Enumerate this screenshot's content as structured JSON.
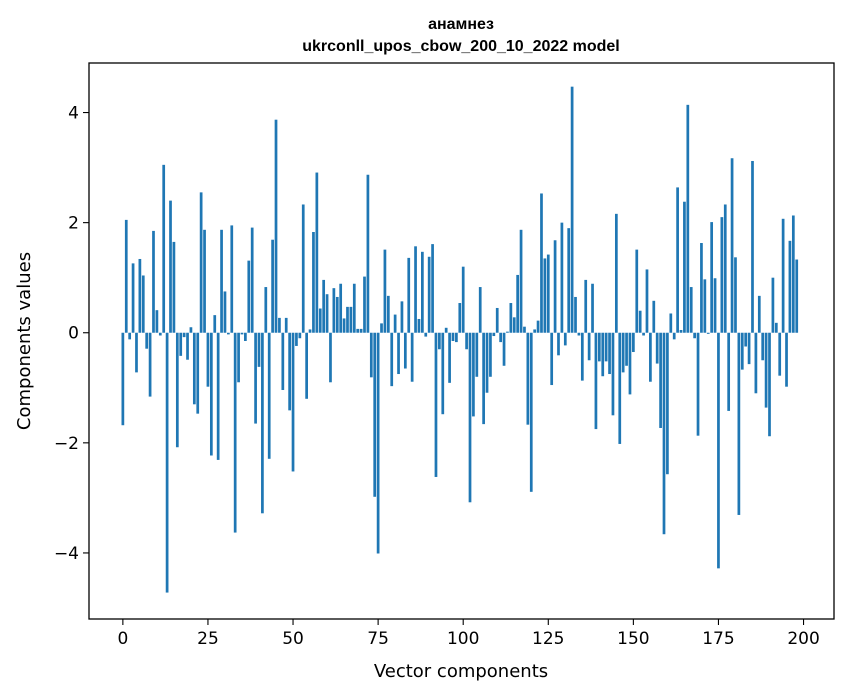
{
  "chart_data": {
    "type": "bar",
    "title_line1": "анамнез",
    "title_line2": "ukrconll_upos_cbow_200_10_2022 model",
    "xlabel": "Vector components",
    "ylabel": "Components values",
    "xlim": [
      -9.95,
      208.95
    ],
    "ylim": [
      -5.2,
      4.9
    ],
    "xticks": [
      0,
      25,
      50,
      75,
      100,
      125,
      150,
      175,
      200
    ],
    "xtick_labels": [
      "0",
      "25",
      "50",
      "75",
      "100",
      "125",
      "150",
      "175",
      "200"
    ],
    "yticks": [
      -4,
      -2,
      0,
      2,
      4
    ],
    "ytick_labels": [
      "−4",
      "−2",
      "0",
      "2",
      "4"
    ],
    "bar_color": "#1f77b4",
    "grid": false,
    "values": [
      -1.68,
      2.05,
      -0.12,
      1.26,
      -0.72,
      1.34,
      1.04,
      -0.29,
      -1.16,
      1.85,
      0.41,
      -0.05,
      3.05,
      -4.72,
      2.4,
      1.65,
      -2.08,
      -0.42,
      -0.08,
      -0.49,
      0.1,
      -1.3,
      -1.47,
      2.55,
      1.87,
      -0.98,
      -2.23,
      0.32,
      -2.31,
      1.87,
      0.75,
      -0.03,
      1.95,
      -3.63,
      -0.9,
      -0.03,
      -0.15,
      1.31,
      1.91,
      -1.65,
      -0.62,
      -3.28,
      0.83,
      -2.29,
      1.69,
      3.87,
      0.27,
      -1.04,
      0.27,
      -1.41,
      -2.52,
      -0.24,
      -0.1,
      2.33,
      -1.2,
      0.06,
      1.83,
      2.91,
      0.44,
      0.96,
      0.7,
      -0.9,
      0.81,
      0.65,
      0.89,
      0.26,
      0.47,
      0.47,
      0.89,
      0.07,
      0.07,
      1.02,
      2.87,
      -0.81,
      -2.98,
      -4.01,
      0.17,
      1.51,
      0.67,
      -0.97,
      0.33,
      -0.75,
      0.57,
      -0.65,
      1.36,
      -0.89,
      1.57,
      0.25,
      1.47,
      -0.07,
      1.38,
      1.61,
      -2.62,
      -0.3,
      -1.48,
      0.09,
      -0.91,
      -0.15,
      -0.17,
      0.54,
      1.2,
      -0.3,
      -3.08,
      -1.52,
      -0.8,
      0.83,
      -1.66,
      -1.09,
      -0.8,
      -0.06,
      0.45,
      -0.17,
      -0.6,
      0.02,
      0.54,
      0.28,
      1.05,
      1.87,
      0.11,
      -1.67,
      -2.89,
      0.06,
      0.22,
      2.53,
      1.35,
      1.42,
      -0.95,
      1.68,
      -0.41,
      2.0,
      -0.23,
      1.9,
      4.47,
      0.65,
      -0.05,
      -0.87,
      0.96,
      -0.5,
      0.89,
      -1.75,
      -0.52,
      -0.79,
      -0.52,
      -0.75,
      -1.5,
      2.16,
      -2.02,
      -0.72,
      -0.6,
      -1.12,
      -0.35,
      1.51,
      0.4,
      -0.05,
      1.15,
      -0.89,
      0.58,
      -0.56,
      -1.73,
      -3.66,
      -2.57,
      0.35,
      -0.12,
      2.64,
      0.05,
      2.38,
      4.14,
      0.83,
      -0.1,
      -1.87,
      1.63,
      0.97,
      -0.02,
      2.01,
      0.99,
      -4.28,
      2.1,
      2.33,
      -1.42,
      3.17,
      1.37,
      -3.31,
      -0.67,
      -0.25,
      -0.57,
      3.12,
      -1.1,
      0.67,
      -0.5,
      -1.36,
      -1.88,
      1.0,
      0.18,
      -0.78,
      2.07,
      -0.98,
      1.67,
      2.13,
      1.33
    ]
  }
}
